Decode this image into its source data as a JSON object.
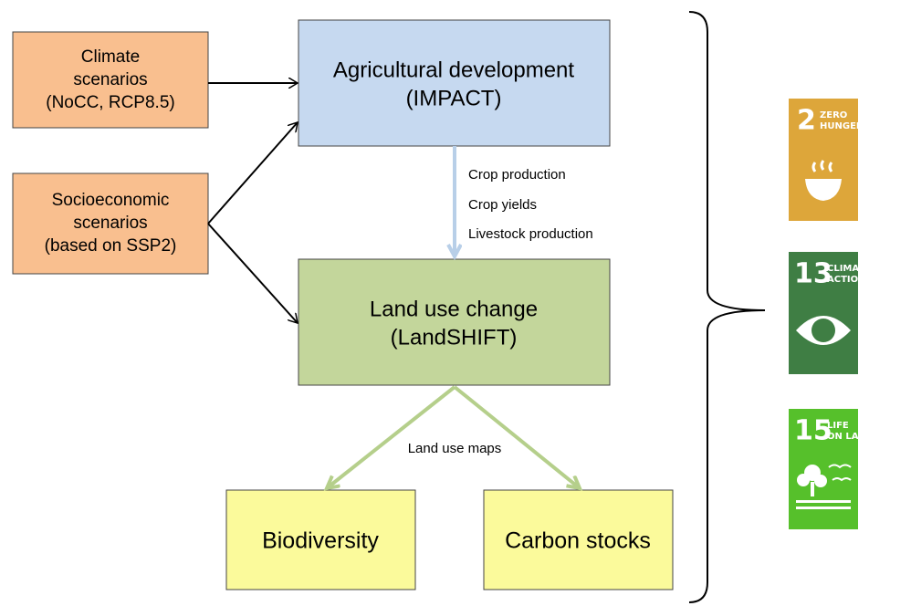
{
  "inputs": [
    {
      "lines": [
        "Climate",
        "scenarios",
        "(NoCC, RCP8.5)"
      ]
    },
    {
      "lines": [
        "Socioeconomic",
        "scenarios",
        "(based on SSP2)"
      ]
    }
  ],
  "models": [
    {
      "lines": [
        "Agricultural development",
        "(IMPACT)"
      ]
    },
    {
      "lines": [
        "Land use change",
        "(LandSHIFT)"
      ]
    }
  ],
  "model_flow": {
    "labels": [
      "Crop production",
      "Crop yields",
      "Livestock production"
    ]
  },
  "output_flow": {
    "label": "Land use maps"
  },
  "outputs": [
    {
      "label": "Biodiversity"
    },
    {
      "label": "Carbon stocks"
    }
  ],
  "sdgs": [
    {
      "number": "2",
      "title": [
        "ZERO",
        "HUNGER"
      ]
    },
    {
      "number": "13",
      "title": [
        "CLIMATE",
        "ACTION"
      ]
    },
    {
      "number": "15",
      "title": [
        "LIFE",
        "ON LAND"
      ]
    }
  ]
}
